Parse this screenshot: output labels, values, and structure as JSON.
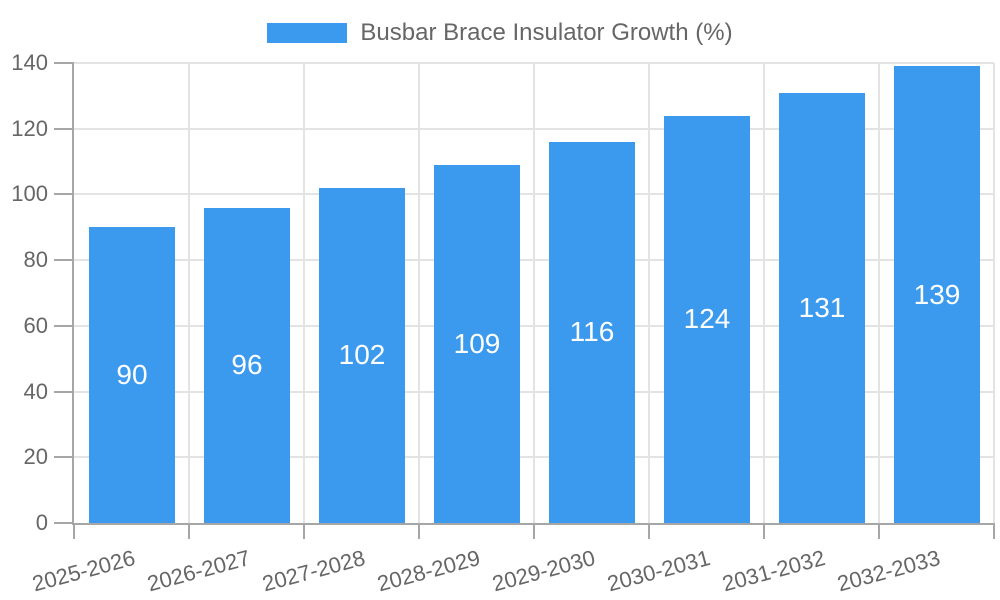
{
  "chart_data": {
    "type": "bar",
    "title": "Busbar Brace Insulator Growth (%)",
    "legend_position": "top",
    "categories": [
      "2025-2026",
      "2026-2027",
      "2027-2028",
      "2028-2029",
      "2029-2030",
      "2030-2031",
      "2031-2032",
      "2032-2033"
    ],
    "values": [
      90,
      96,
      102,
      109,
      116,
      124,
      131,
      139
    ],
    "xlabel": "",
    "ylabel": "",
    "ylim": [
      0,
      140
    ],
    "ytick_step": 20,
    "yticks": [
      0,
      20,
      40,
      60,
      80,
      100,
      120,
      140
    ],
    "grid": true,
    "bar_label_position": "center",
    "colors": {
      "bar": "#3b9aee",
      "bar_label": "#ffffff",
      "tick_text": "#666666",
      "legend_text": "#666666",
      "gridline": "#e3e3e3",
      "axis_border": "#a6a6a6"
    }
  }
}
